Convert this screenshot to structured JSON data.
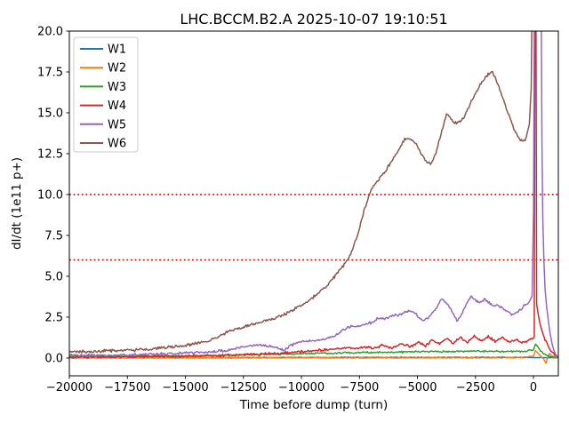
{
  "chart_data": {
    "type": "line",
    "title": "LHC.BCCM.B2.A 2025-10-07 19:10:51",
    "xlabel": "Time before dump (turn)",
    "ylabel": "dI/dt (1e11 p+)",
    "xlim": [
      -20000,
      1070
    ],
    "ylim": [
      -1.09,
      20
    ],
    "grid": false,
    "legend_position": "upper left",
    "x_ticks": [
      -20000,
      -17500,
      -15000,
      -12500,
      -10000,
      -7500,
      -5000,
      -2500,
      0
    ],
    "x_tick_labels": [
      "−20000",
      "−17500",
      "−15000",
      "−12500",
      "−10000",
      "−7500",
      "−5000",
      "−2500",
      "0"
    ],
    "y_ticks": [
      0,
      2.5,
      5,
      7.5,
      10,
      12.5,
      15,
      17.5,
      20
    ],
    "y_tick_labels": [
      "0.0",
      "2.5",
      "5.0",
      "7.5",
      "10.0",
      "12.5",
      "15.0",
      "17.5",
      "20.0"
    ],
    "thresholds": [
      {
        "y": 10,
        "color": "#dd0000",
        "style": "dotted"
      },
      {
        "y": 6,
        "color": "#dd0000",
        "style": "dotted"
      }
    ],
    "series": [
      {
        "name": "W1",
        "color": "#1f77b4",
        "noise": 0.015,
        "points": [
          [
            -20000,
            0.01
          ],
          [
            -15000,
            0.01
          ],
          [
            -10000,
            0.02
          ],
          [
            -5000,
            0.02
          ],
          [
            -2000,
            0.02
          ],
          [
            0,
            0.03
          ],
          [
            400,
            0.02
          ],
          [
            1060,
            0.01
          ]
        ]
      },
      {
        "name": "W2",
        "color": "#ff7f0e",
        "noise": 0.035,
        "points": [
          [
            -20000,
            0.03
          ],
          [
            -17000,
            0.03
          ],
          [
            -14000,
            0.04
          ],
          [
            -11000,
            0.04
          ],
          [
            -8000,
            0.05
          ],
          [
            -5000,
            0.05
          ],
          [
            -2500,
            0.05
          ],
          [
            -1000,
            0.05
          ],
          [
            -300,
            0.06
          ],
          [
            0,
            0.12
          ],
          [
            80,
            0.45
          ],
          [
            180,
            0.32
          ],
          [
            300,
            0.12
          ],
          [
            430,
            -0.05
          ],
          [
            540,
            -0.32
          ],
          [
            610,
            0.05
          ],
          [
            690,
            0.28
          ],
          [
            780,
            0.12
          ],
          [
            900,
            0.04
          ],
          [
            1060,
            0.02
          ]
        ]
      },
      {
        "name": "W3",
        "color": "#2ca02c",
        "noise": 0.06,
        "points": [
          [
            -20000,
            0.1
          ],
          [
            -18000,
            0.1
          ],
          [
            -16000,
            0.12
          ],
          [
            -14000,
            0.15
          ],
          [
            -12000,
            0.2
          ],
          [
            -10000,
            0.26
          ],
          [
            -8000,
            0.32
          ],
          [
            -6000,
            0.36
          ],
          [
            -4000,
            0.4
          ],
          [
            -2500,
            0.42
          ],
          [
            -1500,
            0.4
          ],
          [
            -800,
            0.4
          ],
          [
            -300,
            0.42
          ],
          [
            0,
            0.5
          ],
          [
            90,
            0.85
          ],
          [
            180,
            0.7
          ],
          [
            300,
            0.45
          ],
          [
            450,
            0.25
          ],
          [
            600,
            0.14
          ],
          [
            800,
            0.08
          ],
          [
            1060,
            0.05
          ]
        ]
      },
      {
        "name": "W4",
        "color": "#d62728",
        "noise": 0.09,
        "points": [
          [
            -20000,
            0.04
          ],
          [
            -18000,
            0.07
          ],
          [
            -16000,
            0.1
          ],
          [
            -14000,
            0.14
          ],
          [
            -12000,
            0.22
          ],
          [
            -11000,
            0.28
          ],
          [
            -10000,
            0.38
          ],
          [
            -9200,
            0.48
          ],
          [
            -8600,
            0.55
          ],
          [
            -8100,
            0.63
          ],
          [
            -7700,
            0.55
          ],
          [
            -7300,
            0.7
          ],
          [
            -6900,
            0.58
          ],
          [
            -6500,
            0.78
          ],
          [
            -6100,
            0.6
          ],
          [
            -5700,
            0.85
          ],
          [
            -5300,
            0.68
          ],
          [
            -4950,
            0.95
          ],
          [
            -4650,
            0.75
          ],
          [
            -4350,
            1.1
          ],
          [
            -4050,
            0.85
          ],
          [
            -3750,
            1.2
          ],
          [
            -3450,
            0.9
          ],
          [
            -3150,
            1.28
          ],
          [
            -2850,
            0.95
          ],
          [
            -2550,
            1.35
          ],
          [
            -2250,
            1.0
          ],
          [
            -1950,
            1.32
          ],
          [
            -1650,
            1.0
          ],
          [
            -1350,
            1.25
          ],
          [
            -1050,
            0.95
          ],
          [
            -750,
            1.15
          ],
          [
            -500,
            0.92
          ],
          [
            -300,
            1.02
          ],
          [
            -150,
            1.12
          ],
          [
            30,
            1.3
          ],
          [
            60,
            22.0
          ],
          [
            105,
            22.0
          ],
          [
            135,
            3.3
          ],
          [
            200,
            2.7
          ],
          [
            280,
            2.1
          ],
          [
            380,
            1.6
          ],
          [
            500,
            1.1
          ],
          [
            650,
            0.7
          ],
          [
            800,
            0.35
          ],
          [
            950,
            0.15
          ],
          [
            1060,
            0.08
          ]
        ]
      },
      {
        "name": "W5",
        "color": "#9467bd",
        "noise": 0.1,
        "points": [
          [
            -20000,
            0.15
          ],
          [
            -19000,
            0.16
          ],
          [
            -18000,
            0.18
          ],
          [
            -17000,
            0.2
          ],
          [
            -16000,
            0.25
          ],
          [
            -15000,
            0.3
          ],
          [
            -14000,
            0.38
          ],
          [
            -13200,
            0.45
          ],
          [
            -12400,
            0.72
          ],
          [
            -11800,
            0.8
          ],
          [
            -11200,
            0.68
          ],
          [
            -10750,
            0.5
          ],
          [
            -10300,
            0.88
          ],
          [
            -10000,
            1.0
          ],
          [
            -9500,
            1.05
          ],
          [
            -9000,
            1.15
          ],
          [
            -8600,
            1.32
          ],
          [
            -8200,
            1.7
          ],
          [
            -7900,
            1.92
          ],
          [
            -7500,
            1.95
          ],
          [
            -7100,
            2.1
          ],
          [
            -6700,
            2.4
          ],
          [
            -6300,
            2.45
          ],
          [
            -6000,
            2.6
          ],
          [
            -5650,
            2.72
          ],
          [
            -5350,
            2.9
          ],
          [
            -5050,
            2.7
          ],
          [
            -4800,
            2.28
          ],
          [
            -4550,
            2.45
          ],
          [
            -4250,
            2.95
          ],
          [
            -3950,
            3.65
          ],
          [
            -3700,
            3.3
          ],
          [
            -3450,
            2.7
          ],
          [
            -3300,
            2.28
          ],
          [
            -3100,
            2.6
          ],
          [
            -2900,
            3.3
          ],
          [
            -2700,
            3.8
          ],
          [
            -2500,
            3.55
          ],
          [
            -2320,
            3.35
          ],
          [
            -2120,
            3.62
          ],
          [
            -1950,
            3.45
          ],
          [
            -1750,
            3.18
          ],
          [
            -1550,
            3.22
          ],
          [
            -1350,
            3.05
          ],
          [
            -1150,
            2.88
          ],
          [
            -950,
            2.65
          ],
          [
            -750,
            2.72
          ],
          [
            -550,
            2.95
          ],
          [
            -350,
            3.3
          ],
          [
            -180,
            3.45
          ],
          [
            -60,
            3.8
          ],
          [
            0,
            9.0
          ],
          [
            40,
            22.0
          ],
          [
            330,
            22.0
          ],
          [
            365,
            13.0
          ],
          [
            400,
            8.6
          ],
          [
            450,
            5.9
          ],
          [
            500,
            4.2
          ],
          [
            560,
            3.2
          ],
          [
            620,
            2.5
          ],
          [
            700,
            1.65
          ],
          [
            800,
            0.85
          ],
          [
            900,
            0.38
          ],
          [
            1000,
            0.12
          ],
          [
            1060,
            0.08
          ]
        ]
      },
      {
        "name": "W6",
        "color": "#8c564b",
        "noise": 0.11,
        "points": [
          [
            -20000,
            0.4
          ],
          [
            -19500,
            0.38
          ],
          [
            -19000,
            0.4
          ],
          [
            -18500,
            0.43
          ],
          [
            -18000,
            0.45
          ],
          [
            -17500,
            0.47
          ],
          [
            -17000,
            0.5
          ],
          [
            -16500,
            0.55
          ],
          [
            -16000,
            0.62
          ],
          [
            -15500,
            0.68
          ],
          [
            -15000,
            0.76
          ],
          [
            -14500,
            0.9
          ],
          [
            -14000,
            1.05
          ],
          [
            -13500,
            1.35
          ],
          [
            -13000,
            1.7
          ],
          [
            -12500,
            1.9
          ],
          [
            -12000,
            2.1
          ],
          [
            -11500,
            2.3
          ],
          [
            -11000,
            2.52
          ],
          [
            -10500,
            2.82
          ],
          [
            -10000,
            3.2
          ],
          [
            -9500,
            3.7
          ],
          [
            -9000,
            4.3
          ],
          [
            -8500,
            5.1
          ],
          [
            -8000,
            6.0
          ],
          [
            -7600,
            7.4
          ],
          [
            -7300,
            9.0
          ],
          [
            -7000,
            10.3
          ],
          [
            -6700,
            10.9
          ],
          [
            -6400,
            11.35
          ],
          [
            -6100,
            12.1
          ],
          [
            -5800,
            12.75
          ],
          [
            -5550,
            13.4
          ],
          [
            -5300,
            13.45
          ],
          [
            -5050,
            13.05
          ],
          [
            -4800,
            12.4
          ],
          [
            -4550,
            11.95
          ],
          [
            -4400,
            11.9
          ],
          [
            -4200,
            12.55
          ],
          [
            -3950,
            13.9
          ],
          [
            -3750,
            14.9
          ],
          [
            -3600,
            14.75
          ],
          [
            -3400,
            14.4
          ],
          [
            -3150,
            14.45
          ],
          [
            -2900,
            15.0
          ],
          [
            -2600,
            15.9
          ],
          [
            -2300,
            16.7
          ],
          [
            -2000,
            17.3
          ],
          [
            -1800,
            17.5
          ],
          [
            -1650,
            17.2
          ],
          [
            -1450,
            16.4
          ],
          [
            -1250,
            15.6
          ],
          [
            -1050,
            14.8
          ],
          [
            -850,
            14.0
          ],
          [
            -650,
            13.5
          ],
          [
            -480,
            13.2
          ],
          [
            -330,
            13.45
          ],
          [
            -180,
            14.3
          ],
          [
            -100,
            16.5
          ],
          [
            -60,
            22.0
          ]
        ]
      }
    ],
    "legend": {
      "items": [
        {
          "label": "W1",
          "color": "#1f77b4"
        },
        {
          "label": "W2",
          "color": "#ff7f0e"
        },
        {
          "label": "W3",
          "color": "#2ca02c"
        },
        {
          "label": "W4",
          "color": "#d62728"
        },
        {
          "label": "W5",
          "color": "#9467bd"
        },
        {
          "label": "W6",
          "color": "#8c564b"
        }
      ]
    }
  }
}
